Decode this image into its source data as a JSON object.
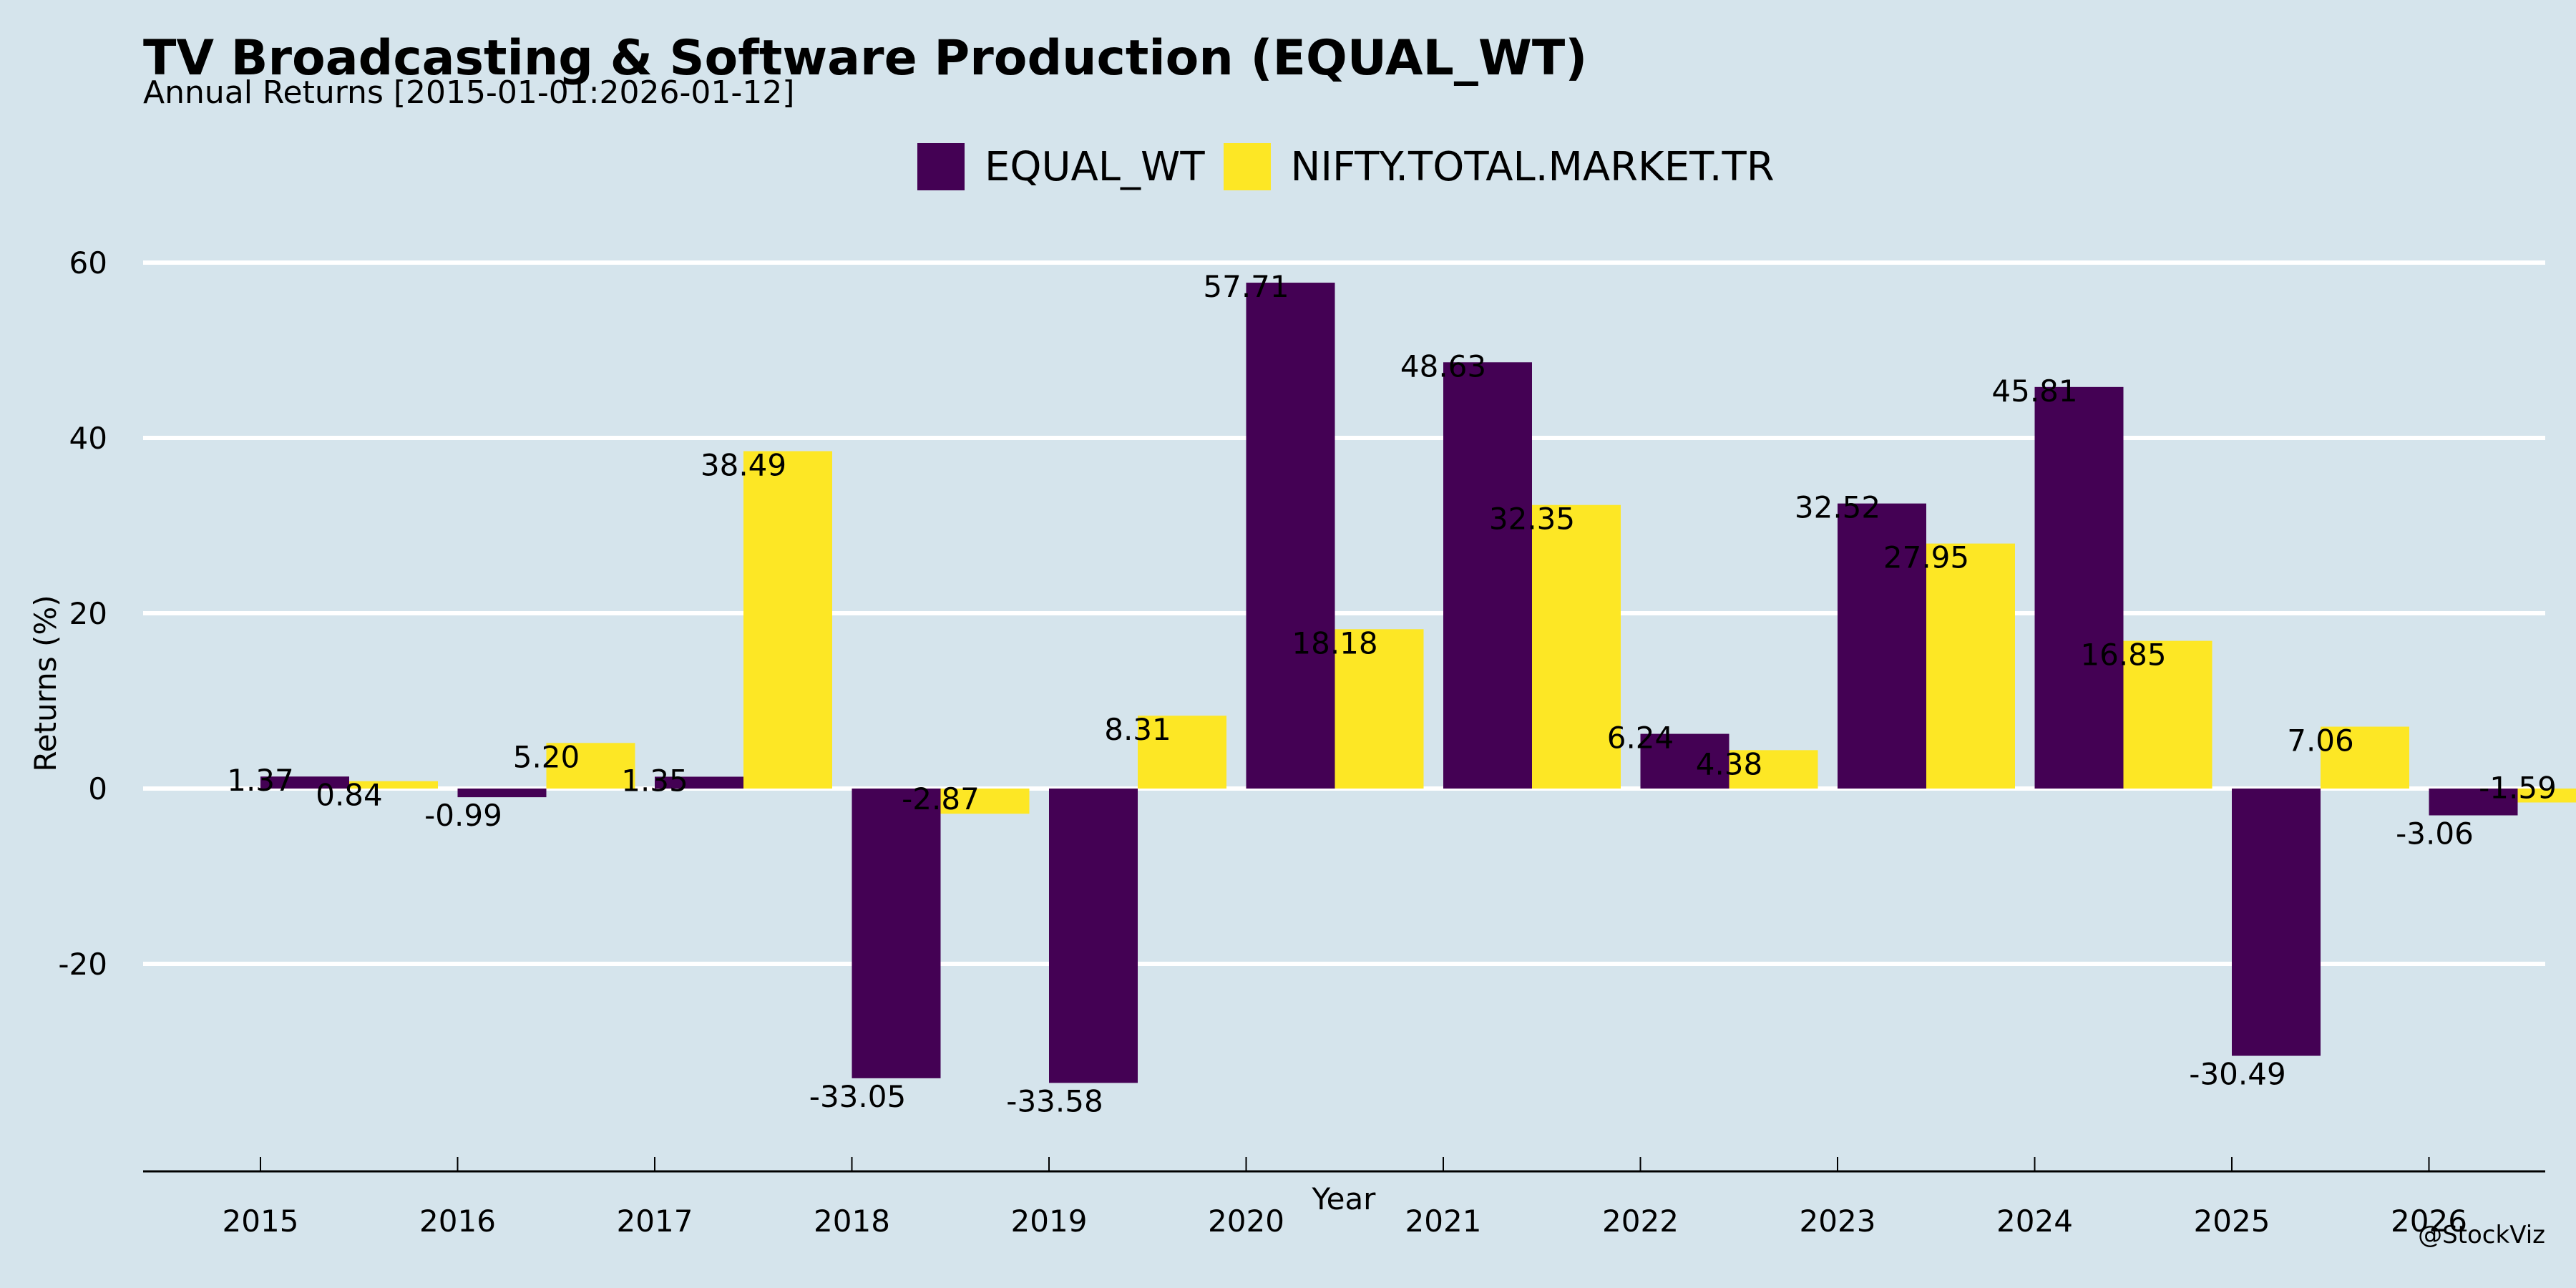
{
  "header": {
    "title": "TV Broadcasting & Software Production (EQUAL_WT)",
    "subtitle": "Annual Returns [2015-01-01:2026-01-12]"
  },
  "watermark": "@StockViz",
  "chart_data": {
    "type": "bar",
    "title": "TV Broadcasting & Software Production (EQUAL_WT)",
    "subtitle": "Annual Returns [2015-01-01:2026-01-12]",
    "xlabel": "Year",
    "ylabel": "Returns (%)",
    "categories": [
      "2015",
      "2016",
      "2017",
      "2018",
      "2019",
      "2020",
      "2021",
      "2022",
      "2023",
      "2024",
      "2025",
      "2026"
    ],
    "series": [
      {
        "name": "EQUAL_WT",
        "color": "#440154",
        "values": [
          1.37,
          -0.99,
          1.35,
          -33.05,
          -33.58,
          57.71,
          48.63,
          6.24,
          32.52,
          45.81,
          -30.49,
          -3.06
        ],
        "labels": [
          "1.37",
          "-0.99",
          "1.35",
          "-33.05",
          "-33.58",
          "57.71",
          "48.63",
          "6.24",
          "32.52",
          "45.81",
          "-30.49",
          "-3.06"
        ]
      },
      {
        "name": "NIFTY.TOTAL.MARKET.TR",
        "color": "#fde725",
        "values": [
          0.84,
          5.2,
          38.49,
          -2.87,
          8.31,
          18.18,
          32.35,
          4.38,
          27.95,
          16.85,
          7.06,
          -1.59
        ],
        "labels": [
          "0.84",
          "5.20",
          "38.49",
          "-2.87",
          "8.31",
          "18.18",
          "32.35",
          "4.38",
          "27.95",
          "16.85",
          "7.06",
          "-1.59"
        ]
      }
    ],
    "yticks": [
      60,
      40,
      20,
      0,
      -20
    ],
    "ytick_labels": [
      "60",
      "40",
      "20",
      "0",
      "-20"
    ],
    "ylim": [
      -38.2,
      62
    ],
    "grid": true,
    "legend_position": "top-center",
    "background": "#d5e4ec"
  }
}
